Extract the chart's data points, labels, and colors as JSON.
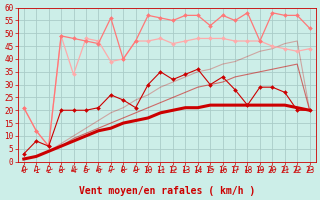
{
  "xlabel": "Vent moyen/en rafales ( km/h )",
  "bg_color": "#cceee8",
  "grid_color": "#aaccc8",
  "xlim": [
    -0.5,
    23.5
  ],
  "ylim": [
    0,
    60
  ],
  "yticks": [
    0,
    5,
    10,
    15,
    20,
    25,
    30,
    35,
    40,
    45,
    50,
    55,
    60
  ],
  "xticks": [
    0,
    1,
    2,
    3,
    4,
    5,
    6,
    7,
    8,
    9,
    10,
    11,
    12,
    13,
    14,
    15,
    16,
    17,
    18,
    19,
    20,
    21,
    22,
    23
  ],
  "series": [
    {
      "label": "dark_red_diamond",
      "x": [
        0,
        1,
        2,
        3,
        4,
        5,
        6,
        7,
        8,
        9,
        10,
        11,
        12,
        13,
        14,
        15,
        16,
        17,
        18,
        19,
        20,
        21,
        22,
        23
      ],
      "y": [
        3,
        8,
        6,
        20,
        20,
        20,
        21,
        26,
        24,
        21,
        30,
        35,
        32,
        34,
        36,
        30,
        33,
        28,
        22,
        29,
        29,
        27,
        20,
        20
      ],
      "color": "#cc0000",
      "lw": 0.8,
      "marker": "D",
      "ms": 2.0,
      "alpha": 1.0,
      "zorder": 5
    },
    {
      "label": "dark_red_thick",
      "x": [
        0,
        1,
        2,
        3,
        4,
        5,
        6,
        7,
        8,
        9,
        10,
        11,
        12,
        13,
        14,
        15,
        16,
        17,
        18,
        19,
        20,
        21,
        22,
        23
      ],
      "y": [
        1,
        2,
        4,
        6,
        8,
        10,
        12,
        13,
        15,
        16,
        17,
        19,
        20,
        21,
        21,
        22,
        22,
        22,
        22,
        22,
        22,
        22,
        21,
        20
      ],
      "color": "#cc0000",
      "lw": 2.2,
      "marker": null,
      "ms": 0,
      "alpha": 1.0,
      "zorder": 4
    },
    {
      "label": "dark_red_thin1",
      "x": [
        0,
        1,
        2,
        3,
        4,
        5,
        6,
        7,
        8,
        9,
        10,
        11,
        12,
        13,
        14,
        15,
        16,
        17,
        18,
        19,
        20,
        21,
        22,
        23
      ],
      "y": [
        1,
        2,
        4,
        6,
        9,
        11,
        13,
        15,
        17,
        19,
        21,
        23,
        25,
        27,
        29,
        30,
        31,
        33,
        34,
        35,
        36,
        37,
        38,
        20
      ],
      "color": "#cc0000",
      "lw": 0.8,
      "marker": null,
      "ms": 0,
      "alpha": 0.55,
      "zorder": 3
    },
    {
      "label": "dark_red_thin2",
      "x": [
        0,
        1,
        2,
        3,
        4,
        5,
        6,
        7,
        8,
        9,
        10,
        11,
        12,
        13,
        14,
        15,
        16,
        17,
        18,
        19,
        20,
        21,
        22,
        23
      ],
      "y": [
        1,
        2,
        4,
        7,
        10,
        13,
        16,
        19,
        21,
        24,
        26,
        29,
        31,
        33,
        35,
        36,
        38,
        39,
        41,
        43,
        44,
        46,
        47,
        20
      ],
      "color": "#cc0000",
      "lw": 0.8,
      "marker": null,
      "ms": 0,
      "alpha": 0.3,
      "zorder": 3
    },
    {
      "label": "light_pink_top_diamond",
      "x": [
        0,
        1,
        2,
        3,
        4,
        5,
        6,
        7,
        8,
        9,
        10,
        11,
        12,
        13,
        14,
        15,
        16,
        17,
        18,
        19,
        20,
        21,
        22,
        23
      ],
      "y": [
        21,
        12,
        6,
        49,
        48,
        47,
        46,
        56,
        40,
        47,
        57,
        56,
        55,
        57,
        57,
        53,
        57,
        55,
        58,
        47,
        58,
        57,
        57,
        52
      ],
      "color": "#ff7777",
      "lw": 0.9,
      "marker": "D",
      "ms": 2.0,
      "alpha": 1.0,
      "zorder": 4
    },
    {
      "label": "light_pink_mid_diamond",
      "x": [
        0,
        1,
        2,
        3,
        4,
        5,
        6,
        7,
        8,
        9,
        10,
        11,
        12,
        13,
        14,
        15,
        16,
        17,
        18,
        19,
        20,
        21,
        22,
        23
      ],
      "y": [
        21,
        12,
        6,
        49,
        34,
        48,
        47,
        39,
        40,
        47,
        47,
        48,
        46,
        47,
        48,
        48,
        48,
        47,
        47,
        47,
        45,
        44,
        43,
        44
      ],
      "color": "#ffaaaa",
      "lw": 0.9,
      "marker": "D",
      "ms": 2.0,
      "alpha": 1.0,
      "zorder": 3
    }
  ],
  "arrow_color": "#cc0000",
  "xlabel_color": "#cc0000",
  "xlabel_fontsize": 7.0,
  "tick_fontsize": 5.5,
  "tick_color": "#cc0000"
}
